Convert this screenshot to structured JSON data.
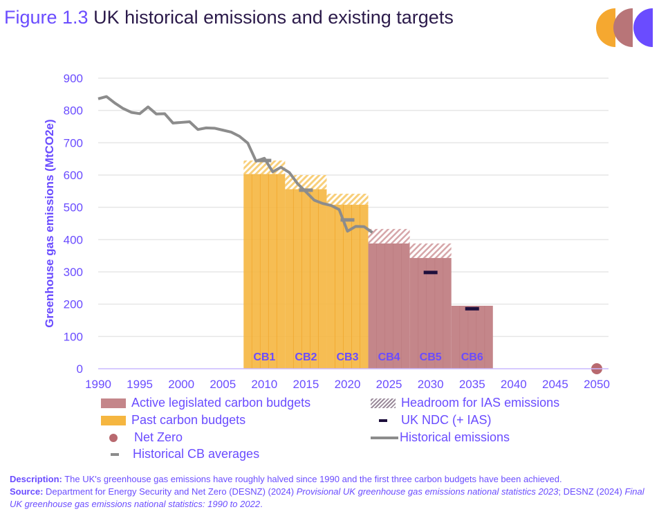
{
  "title": {
    "figure": "Figure 1.3",
    "text": "UK historical emissions and existing targets"
  },
  "colors": {
    "active": "#c4868a",
    "past": "#f5b640",
    "headroom_past": "#f5b640",
    "headroom_active": "#c4868a",
    "ndc": "#1e0f3c",
    "historical": "#8c8c8c",
    "netzero": "#b8696f",
    "text": "#6a4cff"
  },
  "chart_data": {
    "type": "bar",
    "ylabel": "Greenhouse gas emissions (MtCO2e)",
    "ylim": [
      0,
      900
    ],
    "yticks": [
      "0",
      "100",
      "200",
      "300",
      "400",
      "500",
      "600",
      "700",
      "800",
      "900"
    ],
    "xlim": [
      1990,
      2050
    ],
    "xticks": [
      "1990",
      "1995",
      "2000",
      "2005",
      "2010",
      "2015",
      "2020",
      "2025",
      "2030",
      "2035",
      "2040",
      "2045",
      "2050"
    ],
    "grid": true,
    "budgets": [
      {
        "label": "CB1",
        "start": 2008,
        "end": 2012,
        "value": 603,
        "headroom_top": 645,
        "status": "past"
      },
      {
        "label": "CB2",
        "start": 2013,
        "end": 2017,
        "value": 556,
        "headroom_top": 600,
        "status": "past"
      },
      {
        "label": "CB3",
        "start": 2018,
        "end": 2022,
        "value": 508,
        "headroom_top": 542,
        "status": "past"
      },
      {
        "label": "CB4",
        "start": 2023,
        "end": 2027,
        "value": 388,
        "headroom_top": 433,
        "status": "active"
      },
      {
        "label": "CB5",
        "start": 2028,
        "end": 2032,
        "value": 343,
        "headroom_top": 388,
        "status": "active"
      },
      {
        "label": "CB6",
        "start": 2033,
        "end": 2037,
        "value": 195,
        "headroom_top": 195,
        "status": "active"
      }
    ],
    "historical_cb_averages": [
      {
        "year": 2010,
        "value": 645
      },
      {
        "year": 2015,
        "value": 553
      },
      {
        "year": 2020,
        "value": 461
      }
    ],
    "ndc": [
      {
        "year": 2030,
        "value": 298
      },
      {
        "year": 2035,
        "value": 186
      }
    ],
    "net_zero": {
      "year": 2050,
      "value": 0
    },
    "historical": {
      "x": [
        1990,
        1991,
        1992,
        1993,
        1994,
        1995,
        1996,
        1997,
        1998,
        1999,
        2000,
        2001,
        2002,
        2003,
        2004,
        2005,
        2006,
        2007,
        2008,
        2009,
        2010,
        2011,
        2012,
        2013,
        2014,
        2015,
        2016,
        2017,
        2018,
        2019,
        2020,
        2021,
        2022,
        2023
      ],
      "y": [
        836,
        843,
        823,
        806,
        794,
        790,
        811,
        789,
        790,
        761,
        763,
        765,
        741,
        746,
        745,
        739,
        733,
        720,
        699,
        643,
        652,
        610,
        624,
        608,
        573,
        548,
        522,
        512,
        506,
        493,
        426,
        441,
        440,
        422
      ]
    },
    "legend": [
      "Active legislated carbon budgets",
      "Headroom for IAS emissions",
      "Past carbon budgets",
      "UK NDC (+ IAS)",
      "Net Zero",
      "Historical emissions",
      "Historical CB averages"
    ]
  },
  "footer": {
    "desc_label": "Description:",
    "desc": " The UK's greenhouse gas emissions have roughly halved since 1990 and the first three carbon budgets have been achieved.",
    "src_label": "Source:",
    "src1": " Department for Energy Security and Net Zero (DESNZ) (2024) ",
    "src1_it": "Provisional UK greenhouse gas emissions national statistics 2023",
    "src2": "; DESNZ (2024) ",
    "src2_it": "Final UK greenhouse gas emissions national statistics: 1990 to 2022",
    "src3": "."
  }
}
